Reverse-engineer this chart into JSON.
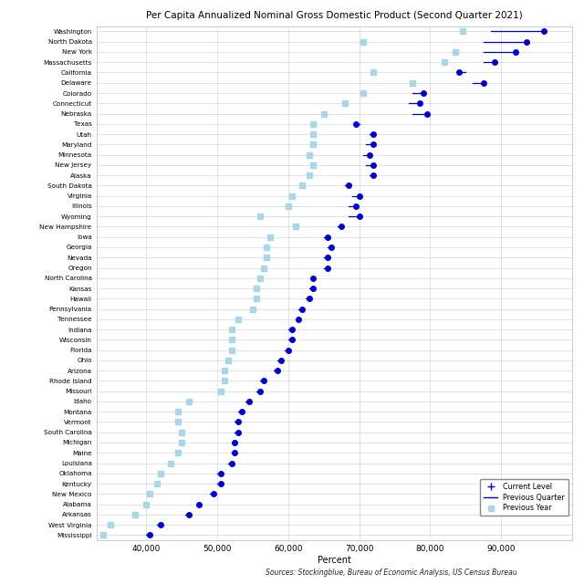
{
  "title": "Per Capita Annualized Nominal Gross Domestic Product (Second Quarter 2021)",
  "xlabel": "Percent",
  "source": "Sources: Stockingblue, Bureau of Economic Analysis, US Census Bureau",
  "states": [
    "Washington",
    "North Dakota",
    "New York",
    "Massachusetts",
    "California",
    "Delaware",
    "Colorado",
    "Connecticut",
    "Nebraska",
    "Texas",
    "Utah",
    "Maryland",
    "Minnesota",
    "New Jersey",
    "Alaska",
    "South Dakota",
    "Virginia",
    "Illinois",
    "Wyoming",
    "New Hampshire",
    "Iowa",
    "Georgia",
    "Nevada",
    "Oregon",
    "North Carolina",
    "Kansas",
    "Hawaii",
    "Pennsylvania",
    "Tennessee",
    "Indiana",
    "Wisconsin",
    "Florida",
    "Ohio",
    "Arizona",
    "Rhode Island",
    "Missouri",
    "Idaho",
    "Montana",
    "Vermont",
    "South Carolina",
    "Michigan",
    "Maine",
    "Louisiana",
    "Oklahoma",
    "Kentucky",
    "New Mexico",
    "Alabama",
    "Arkansas",
    "West Virginia",
    "Mississippi"
  ],
  "current": [
    96000,
    93500,
    92000,
    89000,
    84000,
    87500,
    79000,
    78500,
    79500,
    69500,
    72000,
    72000,
    71500,
    72000,
    72000,
    68500,
    70000,
    69500,
    70000,
    67500,
    65500,
    66000,
    65500,
    65500,
    63500,
    63500,
    63000,
    62000,
    61500,
    60500,
    60500,
    60000,
    59000,
    58500,
    56500,
    56000,
    54500,
    53500,
    53000,
    53000,
    52500,
    52500,
    52000,
    50500,
    50500,
    49500,
    47500,
    46000,
    42000,
    40500
  ],
  "prev_quarter": [
    88500,
    87500,
    87500,
    87500,
    85000,
    86000,
    77500,
    77000,
    77500,
    70000,
    71500,
    71000,
    70500,
    71000,
    71500,
    68000,
    69000,
    68500,
    68500,
    67000,
    65000,
    65500,
    65000,
    65000,
    63500,
    63000,
    62500,
    61500,
    61000,
    60000,
    60000,
    59500,
    58500,
    58000,
    56000,
    55500,
    54000,
    53000,
    52500,
    52500,
    52000,
    52000,
    51500,
    50000,
    50000,
    49000,
    47000,
    45500,
    41500,
    40000
  ],
  "prev_year": [
    84500,
    70500,
    83500,
    82000,
    72000,
    77500,
    70500,
    68000,
    65000,
    63500,
    63500,
    63500,
    63000,
    63500,
    63000,
    62000,
    60500,
    60000,
    56000,
    61000,
    57500,
    57000,
    57000,
    56500,
    56000,
    55500,
    55500,
    55000,
    53000,
    52000,
    52000,
    52000,
    51500,
    51000,
    51000,
    50500,
    46000,
    44500,
    44500,
    45000,
    45000,
    44500,
    43500,
    42000,
    41500,
    40500,
    40000,
    38500,
    35000,
    34000
  ],
  "xlim": [
    33000,
    100000
  ],
  "xticks": [
    40000,
    50000,
    60000,
    70000,
    80000,
    90000
  ],
  "current_color": "#0000cc",
  "line_color": "#0000cc",
  "square_color": "#a8d8e8",
  "bg_color": "#ffffff",
  "grid_color": "#d0d8e0"
}
